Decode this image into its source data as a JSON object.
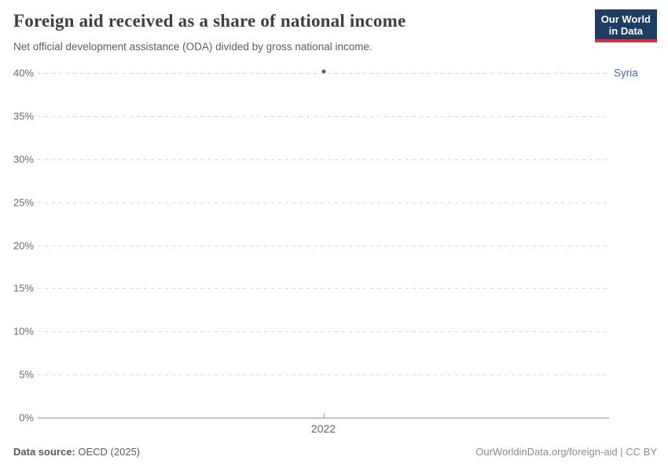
{
  "header": {
    "title": "Foreign aid received as a share of national income",
    "subtitle": "Net official development assistance (ODA) divided by gross national income."
  },
  "logo": {
    "line1": "Our World",
    "line2": "in Data"
  },
  "chart_data": {
    "type": "scatter",
    "title": "Foreign aid received as a share of national income",
    "series": [
      {
        "name": "Syria",
        "points": [
          {
            "x": 2022,
            "y": 40.2
          }
        ],
        "color": "#4c6a9c",
        "dot_color": "#3f629f"
      }
    ],
    "xticks": [
      {
        "value": 2022,
        "label": "2022"
      }
    ],
    "yticks": [
      {
        "value": 0,
        "label": "0%"
      },
      {
        "value": 5,
        "label": "5%"
      },
      {
        "value": 10,
        "label": "10%"
      },
      {
        "value": 15,
        "label": "15%"
      },
      {
        "value": 20,
        "label": "20%"
      },
      {
        "value": 25,
        "label": "25%"
      },
      {
        "value": 30,
        "label": "30%"
      },
      {
        "value": 35,
        "label": "35%"
      },
      {
        "value": 40,
        "label": "40%"
      }
    ],
    "ylim": [
      0,
      40
    ],
    "xlabel": "",
    "ylabel": "",
    "grid": "horizontal-dashed",
    "legend_position": "entity-label-right"
  },
  "footer": {
    "source_label": "Data source:",
    "source_text": "OECD (2025)",
    "license_text": "OurWorldinData.org/foreign-aid | CC BY"
  },
  "colors": {
    "navy": "#1d3d63",
    "red": "#e02c3d",
    "series_blue": "#4c6a9c",
    "grid": "#d9d9d9",
    "axis": "#949494"
  }
}
